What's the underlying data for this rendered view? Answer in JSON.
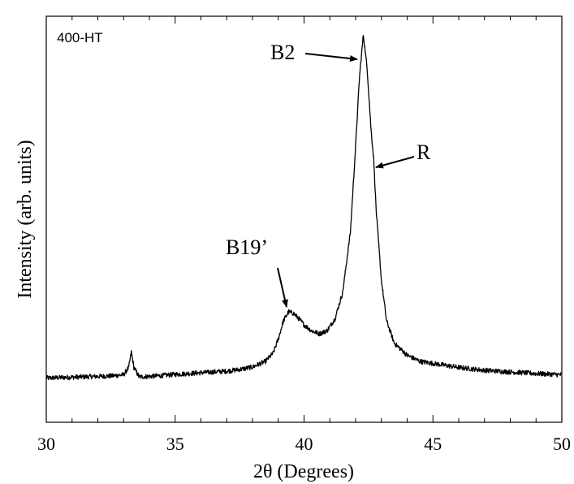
{
  "chart_data": {
    "type": "line",
    "panel_label": "400-HT",
    "xlabel": "2θ (Degrees)",
    "ylabel": "Intensity (arb. units)",
    "xlim": [
      30,
      50
    ],
    "ylim": [
      0,
      1
    ],
    "x_ticks": [
      30,
      35,
      40,
      45,
      50
    ],
    "grid": false,
    "legend": "none",
    "series": [
      {
        "color": "#000000",
        "points": [
          [
            30.0,
            0.109
          ],
          [
            30.5,
            0.11
          ],
          [
            31.0,
            0.111
          ],
          [
            31.5,
            0.112
          ],
          [
            32.0,
            0.113
          ],
          [
            32.5,
            0.114
          ],
          [
            33.0,
            0.117
          ],
          [
            33.2,
            0.135
          ],
          [
            33.3,
            0.173
          ],
          [
            33.4,
            0.135
          ],
          [
            33.6,
            0.112
          ],
          [
            34.0,
            0.113
          ],
          [
            34.5,
            0.115
          ],
          [
            35.0,
            0.118
          ],
          [
            35.5,
            0.12
          ],
          [
            36.0,
            0.122
          ],
          [
            36.5,
            0.124
          ],
          [
            37.0,
            0.126
          ],
          [
            37.5,
            0.13
          ],
          [
            38.0,
            0.136
          ],
          [
            38.5,
            0.15
          ],
          [
            38.8,
            0.17
          ],
          [
            39.0,
            0.205
          ],
          [
            39.2,
            0.25
          ],
          [
            39.4,
            0.272
          ],
          [
            39.6,
            0.268
          ],
          [
            39.8,
            0.255
          ],
          [
            40.0,
            0.24
          ],
          [
            40.3,
            0.225
          ],
          [
            40.6,
            0.218
          ],
          [
            40.9,
            0.226
          ],
          [
            41.2,
            0.255
          ],
          [
            41.5,
            0.32
          ],
          [
            41.8,
            0.47
          ],
          [
            42.0,
            0.68
          ],
          [
            42.15,
            0.85
          ],
          [
            42.3,
            0.955
          ],
          [
            42.45,
            0.87
          ],
          [
            42.6,
            0.72
          ],
          [
            42.7,
            0.65
          ],
          [
            42.8,
            0.52
          ],
          [
            43.0,
            0.35
          ],
          [
            43.2,
            0.25
          ],
          [
            43.5,
            0.195
          ],
          [
            44.0,
            0.165
          ],
          [
            44.5,
            0.15
          ],
          [
            45.0,
            0.145
          ],
          [
            45.5,
            0.14
          ],
          [
            46.0,
            0.135
          ],
          [
            47.0,
            0.128
          ],
          [
            48.0,
            0.124
          ],
          [
            49.0,
            0.12
          ],
          [
            50.0,
            0.117
          ]
        ]
      }
    ],
    "annotations": [
      {
        "text": "B2",
        "target": [
          42.25,
          0.955
        ]
      },
      {
        "text": "R",
        "target": [
          42.7,
          0.65
        ]
      },
      {
        "text": "B19’",
        "target": [
          39.45,
          0.27
        ]
      }
    ]
  }
}
